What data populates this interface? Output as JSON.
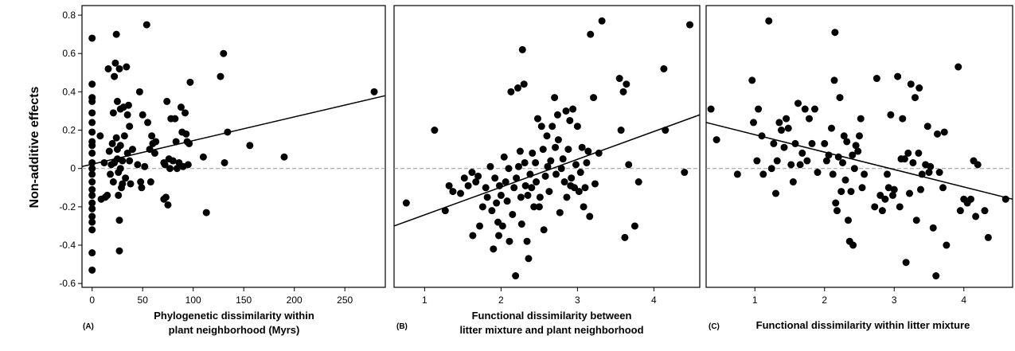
{
  "figure": {
    "ylabel": "Non-additive effects"
  },
  "chart_data": [
    {
      "type": "scatter",
      "panel_label": "(A)",
      "xlabel_lines": [
        "Phylogenetic dissimilarity within",
        "plant neighborhood (Myrs)"
      ],
      "ylabel": "Non-additive effects",
      "xlim": [
        -10,
        290
      ],
      "ylim": [
        -0.62,
        0.85
      ],
      "xticks": [
        0,
        50,
        100,
        150,
        200,
        250
      ],
      "yticks": [
        -0.6,
        -0.4,
        -0.2,
        0,
        0.2,
        0.4,
        0.6,
        0.8
      ],
      "ytick_labels": [
        "-0.6",
        "-0.4",
        "-0.2",
        "0",
        "0.2",
        "0.4",
        "0.6",
        "0.8"
      ],
      "grid": false,
      "reference_line_y": 0,
      "fit_line": [
        [
          -10,
          0.01
        ],
        [
          290,
          0.38
        ]
      ],
      "points": [
        [
          0,
          0.68
        ],
        [
          0,
          0.44
        ],
        [
          0,
          0.37
        ],
        [
          0,
          0.35
        ],
        [
          0,
          0.29
        ],
        [
          0,
          0.24
        ],
        [
          0,
          0.19
        ],
        [
          0,
          0.14
        ],
        [
          0,
          0.12
        ],
        [
          0,
          0.08
        ],
        [
          0,
          0.03
        ],
        [
          0,
          0.0
        ],
        [
          0,
          -0.03
        ],
        [
          0,
          -0.07
        ],
        [
          0,
          -0.11
        ],
        [
          0,
          -0.14
        ],
        [
          0,
          -0.18
        ],
        [
          0,
          -0.21
        ],
        [
          0,
          -0.25
        ],
        [
          0,
          -0.28
        ],
        [
          0,
          -0.32
        ],
        [
          0,
          -0.44
        ],
        [
          0,
          -0.53
        ],
        [
          8,
          0.17
        ],
        [
          9,
          -0.16
        ],
        [
          12,
          0.03
        ],
        [
          13,
          -0.15
        ],
        [
          15,
          -0.14
        ],
        [
          16,
          0.52
        ],
        [
          17,
          0.09
        ],
        [
          18,
          -0.03
        ],
        [
          19,
          0.02
        ],
        [
          20,
          0.13
        ],
        [
          21,
          0.29
        ],
        [
          21,
          -0.07
        ],
        [
          22,
          0.48
        ],
        [
          22,
          0.03
        ],
        [
          23,
          0.55
        ],
        [
          24,
          0.7
        ],
        [
          24,
          0.16
        ],
        [
          25,
          0.35
        ],
        [
          25,
          0.1
        ],
        [
          25,
          0.05
        ],
        [
          26,
          -0.02
        ],
        [
          26,
          -0.14
        ],
        [
          27,
          0.52
        ],
        [
          27,
          -0.27
        ],
        [
          27,
          -0.43
        ],
        [
          28,
          0.31
        ],
        [
          28,
          0.12
        ],
        [
          28,
          0.0
        ],
        [
          29,
          -0.1
        ],
        [
          30,
          0.04
        ],
        [
          30,
          -0.08
        ],
        [
          31,
          0.32
        ],
        [
          32,
          0.17
        ],
        [
          33,
          -0.05
        ],
        [
          34,
          0.53
        ],
        [
          35,
          0.28
        ],
        [
          35,
          0.08
        ],
        [
          36,
          0.33
        ],
        [
          37,
          0.22
        ],
        [
          37,
          0.04
        ],
        [
          38,
          -0.08
        ],
        [
          40,
          0.1
        ],
        [
          45,
          0.02
        ],
        [
          47,
          0.4
        ],
        [
          48,
          -0.07
        ],
        [
          49,
          -0.1
        ],
        [
          50,
          0.28
        ],
        [
          52,
          0.01
        ],
        [
          54,
          0.75
        ],
        [
          55,
          0.24
        ],
        [
          57,
          0.1
        ],
        [
          58,
          -0.07
        ],
        [
          59,
          0.17
        ],
        [
          60,
          0.13
        ],
        [
          62,
          0.08
        ],
        [
          63,
          0.14
        ],
        [
          71,
          -0.16
        ],
        [
          71,
          0.03
        ],
        [
          72,
          0.02
        ],
        [
          73,
          -0.15
        ],
        [
          74,
          0.35
        ],
        [
          75,
          -0.19
        ],
        [
          76,
          0.05
        ],
        [
          77,
          0.0
        ],
        [
          78,
          0.26
        ],
        [
          80,
          0.04
        ],
        [
          82,
          0.26
        ],
        [
          83,
          0.14
        ],
        [
          84,
          0.0
        ],
        [
          86,
          0.03
        ],
        [
          88,
          0.32
        ],
        [
          89,
          0.19
        ],
        [
          90,
          0.01
        ],
        [
          92,
          0.29
        ],
        [
          93,
          0.18
        ],
        [
          94,
          0.14
        ],
        [
          95,
          0.02
        ],
        [
          96,
          0.13
        ],
        [
          97,
          0.45
        ],
        [
          110,
          0.06
        ],
        [
          113,
          -0.23
        ],
        [
          127,
          0.48
        ],
        [
          130,
          0.6
        ],
        [
          131,
          0.03
        ],
        [
          134,
          0.19
        ],
        [
          156,
          0.12
        ],
        [
          190,
          0.06
        ],
        [
          279,
          0.4
        ]
      ]
    },
    {
      "type": "scatter",
      "panel_label": "(B)",
      "xlabel_lines": [
        "Functional dissimilarity between",
        "litter mixture and plant neighborhood"
      ],
      "xlim": [
        0.6,
        4.6
      ],
      "ylim": [
        -0.62,
        0.85
      ],
      "xticks": [
        1,
        2,
        3,
        4
      ],
      "grid": false,
      "reference_line_y": 0,
      "fit_line": [
        [
          0.6,
          -0.3
        ],
        [
          4.6,
          0.28
        ]
      ],
      "points": [
        [
          0.76,
          -0.18
        ],
        [
          1.13,
          0.2
        ],
        [
          1.27,
          -0.22
        ],
        [
          1.32,
          -0.09
        ],
        [
          1.37,
          -0.12
        ],
        [
          1.47,
          -0.13
        ],
        [
          1.52,
          -0.05
        ],
        [
          1.57,
          -0.09
        ],
        [
          1.62,
          -0.02
        ],
        [
          1.63,
          -0.35
        ],
        [
          1.67,
          -0.07
        ],
        [
          1.7,
          -0.04
        ],
        [
          1.72,
          -0.3
        ],
        [
          1.76,
          -0.2
        ],
        [
          1.8,
          -0.1
        ],
        [
          1.82,
          -0.15
        ],
        [
          1.86,
          0.01
        ],
        [
          1.88,
          -0.22
        ],
        [
          1.9,
          -0.42
        ],
        [
          1.92,
          -0.05
        ],
        [
          1.94,
          -0.18
        ],
        [
          1.96,
          -0.28
        ],
        [
          1.97,
          -0.35
        ],
        [
          1.98,
          -0.09
        ],
        [
          2.0,
          -0.14
        ],
        [
          2.02,
          -0.3
        ],
        [
          2.04,
          0.06
        ],
        [
          2.06,
          -0.07
        ],
        [
          2.08,
          -0.17
        ],
        [
          2.1,
          0.0
        ],
        [
          2.11,
          -0.38
        ],
        [
          2.13,
          0.4
        ],
        [
          2.15,
          -0.24
        ],
        [
          2.17,
          -0.1
        ],
        [
          2.19,
          -0.56
        ],
        [
          2.2,
          -0.05
        ],
        [
          2.22,
          0.42
        ],
        [
          2.23,
          0.01
        ],
        [
          2.25,
          0.09
        ],
        [
          2.26,
          -0.15
        ],
        [
          2.27,
          -0.29
        ],
        [
          2.28,
          0.62
        ],
        [
          2.3,
          0.44
        ],
        [
          2.31,
          0.03
        ],
        [
          2.32,
          -0.09
        ],
        [
          2.34,
          -0.38
        ],
        [
          2.35,
          -0.14
        ],
        [
          2.36,
          -0.47
        ],
        [
          2.38,
          -0.03
        ],
        [
          2.4,
          -0.1
        ],
        [
          2.41,
          0.08
        ],
        [
          2.43,
          -0.2
        ],
        [
          2.45,
          0.03
        ],
        [
          2.46,
          -0.07
        ],
        [
          2.48,
          0.26
        ],
        [
          2.5,
          -0.2
        ],
        [
          2.51,
          -0.15
        ],
        [
          2.53,
          0.22
        ],
        [
          2.55,
          0.1
        ],
        [
          2.56,
          -0.32
        ],
        [
          2.58,
          -0.04
        ],
        [
          2.6,
          0.17
        ],
        [
          2.61,
          0.01
        ],
        [
          2.63,
          -0.12
        ],
        [
          2.65,
          0.04
        ],
        [
          2.67,
          0.22
        ],
        [
          2.7,
          0.37
        ],
        [
          2.71,
          0.11
        ],
        [
          2.72,
          -0.03
        ],
        [
          2.74,
          0.28
        ],
        [
          2.75,
          0.15
        ],
        [
          2.77,
          -0.23
        ],
        [
          2.79,
          0.0
        ],
        [
          2.81,
          0.05
        ],
        [
          2.83,
          -0.07
        ],
        [
          2.85,
          0.3
        ],
        [
          2.86,
          -0.15
        ],
        [
          2.88,
          0.1
        ],
        [
          2.9,
          0.25
        ],
        [
          2.91,
          -0.09
        ],
        [
          2.92,
          -0.05
        ],
        [
          2.94,
          0.31
        ],
        [
          2.96,
          -0.1
        ],
        [
          2.98,
          0.02
        ],
        [
          3.0,
          0.22
        ],
        [
          3.02,
          -0.12
        ],
        [
          3.04,
          -0.02
        ],
        [
          3.06,
          0.11
        ],
        [
          3.08,
          -0.2
        ],
        [
          3.1,
          -0.1
        ],
        [
          3.12,
          0.03
        ],
        [
          3.14,
          0.09
        ],
        [
          3.16,
          -0.25
        ],
        [
          3.17,
          0.7
        ],
        [
          3.21,
          0.37
        ],
        [
          3.23,
          -0.08
        ],
        [
          3.28,
          0.08
        ],
        [
          3.32,
          0.77
        ],
        [
          3.55,
          0.47
        ],
        [
          3.57,
          0.2
        ],
        [
          3.6,
          0.4
        ],
        [
          3.62,
          -0.36
        ],
        [
          3.64,
          0.44
        ],
        [
          3.67,
          0.02
        ],
        [
          3.75,
          -0.3
        ],
        [
          3.8,
          -0.07
        ],
        [
          4.13,
          0.52
        ],
        [
          4.15,
          0.2
        ],
        [
          4.4,
          -0.02
        ],
        [
          4.47,
          0.75
        ]
      ]
    },
    {
      "type": "scatter",
      "panel_label": "(C)",
      "xlabel_lines": [
        "Functional dissimilarity within litter mixture"
      ],
      "xlim": [
        0.3,
        4.7
      ],
      "ylim": [
        -0.62,
        0.85
      ],
      "xticks": [
        1,
        2,
        3,
        4
      ],
      "grid": false,
      "reference_line_y": 0,
      "fit_line": [
        [
          0.3,
          0.24
        ],
        [
          4.7,
          -0.16
        ]
      ],
      "points": [
        [
          0.37,
          0.31
        ],
        [
          0.45,
          0.15
        ],
        [
          0.75,
          -0.03
        ],
        [
          0.96,
          0.46
        ],
        [
          0.98,
          0.24
        ],
        [
          1.03,
          0.04
        ],
        [
          1.05,
          0.31
        ],
        [
          1.1,
          0.17
        ],
        [
          1.12,
          -0.03
        ],
        [
          1.2,
          0.77
        ],
        [
          1.24,
          0.0
        ],
        [
          1.27,
          0.13
        ],
        [
          1.3,
          -0.13
        ],
        [
          1.32,
          0.04
        ],
        [
          1.35,
          0.24
        ],
        [
          1.38,
          0.2
        ],
        [
          1.42,
          0.11
        ],
        [
          1.45,
          0.26
        ],
        [
          1.48,
          0.21
        ],
        [
          1.52,
          0.02
        ],
        [
          1.55,
          -0.07
        ],
        [
          1.58,
          0.13
        ],
        [
          1.62,
          0.34
        ],
        [
          1.65,
          0.02
        ],
        [
          1.68,
          0.08
        ],
        [
          1.72,
          0.31
        ],
        [
          1.75,
          0.04
        ],
        [
          1.78,
          0.26
        ],
        [
          1.82,
          0.13
        ],
        [
          1.86,
          0.31
        ],
        [
          1.9,
          -0.02
        ],
        [
          2.0,
          0.13
        ],
        [
          2.03,
          0.04
        ],
        [
          2.06,
          0.07
        ],
        [
          2.1,
          0.21
        ],
        [
          2.12,
          -0.03
        ],
        [
          2.14,
          0.46
        ],
        [
          2.15,
          0.71
        ],
        [
          2.16,
          -0.18
        ],
        [
          2.18,
          -0.22
        ],
        [
          2.2,
          0.06
        ],
        [
          2.22,
          0.37
        ],
        [
          2.24,
          -0.12
        ],
        [
          2.26,
          0.03
        ],
        [
          2.28,
          0.17
        ],
        [
          2.3,
          -0.06
        ],
        [
          2.32,
          0.14
        ],
        [
          2.34,
          -0.27
        ],
        [
          2.36,
          -0.38
        ],
        [
          2.38,
          -0.12
        ],
        [
          2.4,
          0.07
        ],
        [
          2.41,
          -0.4
        ],
        [
          2.43,
          0.0
        ],
        [
          2.45,
          0.12
        ],
        [
          2.48,
          0.09
        ],
        [
          2.5,
          0.17
        ],
        [
          2.52,
          0.26
        ],
        [
          2.54,
          -0.1
        ],
        [
          2.57,
          -0.03
        ],
        [
          2.72,
          -0.2
        ],
        [
          2.75,
          0.47
        ],
        [
          2.8,
          -0.14
        ],
        [
          2.83,
          -0.22
        ],
        [
          2.87,
          -0.16
        ],
        [
          2.9,
          -0.03
        ],
        [
          2.92,
          -0.1
        ],
        [
          2.95,
          0.28
        ],
        [
          2.98,
          -0.14
        ],
        [
          3.0,
          -0.11
        ],
        [
          3.05,
          0.48
        ],
        [
          3.08,
          -0.2
        ],
        [
          3.1,
          0.05
        ],
        [
          3.12,
          0.26
        ],
        [
          3.15,
          0.05
        ],
        [
          3.17,
          -0.49
        ],
        [
          3.2,
          0.08
        ],
        [
          3.22,
          -0.13
        ],
        [
          3.24,
          0.44
        ],
        [
          3.27,
          0.03
        ],
        [
          3.3,
          0.37
        ],
        [
          3.32,
          -0.27
        ],
        [
          3.35,
          0.08
        ],
        [
          3.36,
          0.42
        ],
        [
          3.38,
          -0.11
        ],
        [
          3.4,
          -0.03
        ],
        [
          3.45,
          0.02
        ],
        [
          3.48,
          0.22
        ],
        [
          3.5,
          -0.02
        ],
        [
          3.52,
          0.01
        ],
        [
          3.56,
          -0.31
        ],
        [
          3.6,
          -0.56
        ],
        [
          3.62,
          0.18
        ],
        [
          3.65,
          -0.02
        ],
        [
          3.7,
          -0.1
        ],
        [
          3.72,
          0.19
        ],
        [
          3.75,
          -0.4
        ],
        [
          3.92,
          0.53
        ],
        [
          3.95,
          -0.22
        ],
        [
          4.0,
          -0.16
        ],
        [
          4.05,
          -0.18
        ],
        [
          4.1,
          -0.16
        ],
        [
          4.14,
          0.04
        ],
        [
          4.17,
          -0.25
        ],
        [
          4.2,
          0.02
        ],
        [
          4.3,
          -0.22
        ],
        [
          4.35,
          -0.36
        ],
        [
          4.6,
          -0.16
        ]
      ]
    }
  ]
}
